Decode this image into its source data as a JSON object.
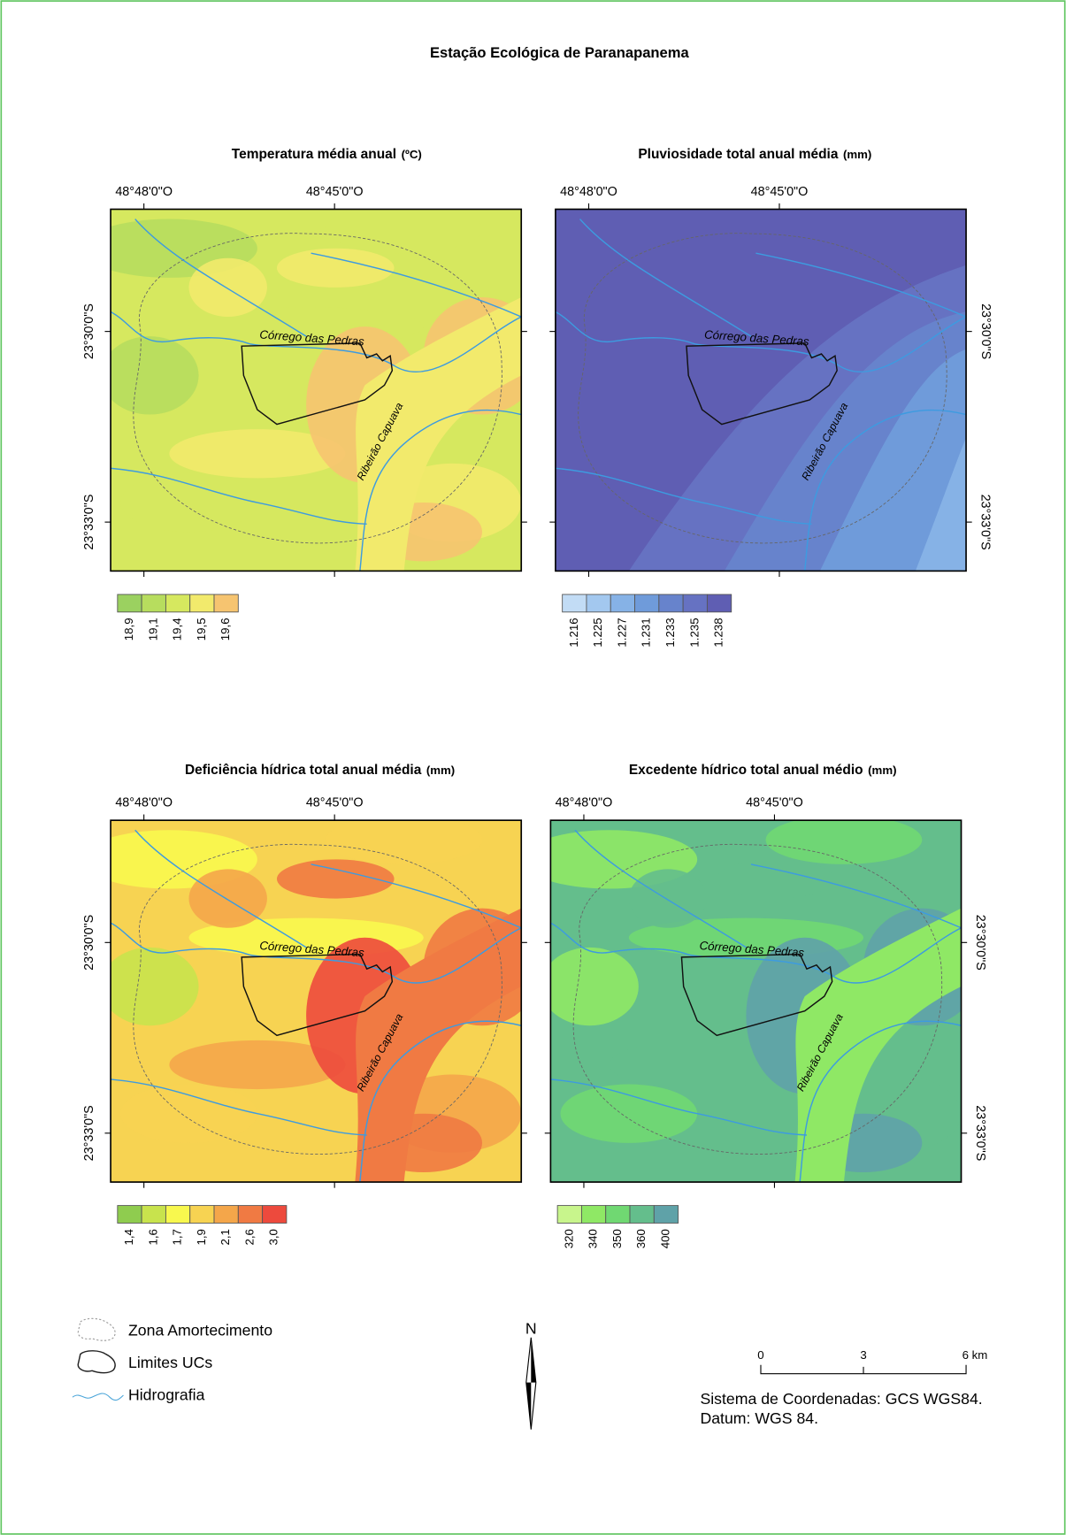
{
  "title": "Estação Ecológica de Paranapanema",
  "coordinates": {
    "x": [
      "48°48'0\"O",
      "48°45'0\"O"
    ],
    "y": [
      "23°30'0\"S",
      "23°33'0\"S"
    ]
  },
  "rivers": [
    "Córrego das Pedras",
    "Ribeirão Capuava"
  ],
  "panels": [
    {
      "title": "Temperatura média anual",
      "unit": "(ºC)",
      "legend": [
        {
          "label": "18,9",
          "color": "#9bd160"
        },
        {
          "label": "19,1",
          "color": "#b7dd5e"
        },
        {
          "label": "19,4",
          "color": "#d6e85f"
        },
        {
          "label": "19,5",
          "color": "#f2ea6c"
        },
        {
          "label": "19,6",
          "color": "#f6c470"
        }
      ]
    },
    {
      "title": "Pluviosidade total anual média",
      "unit": "(mm)",
      "legend": [
        {
          "label": "1.216",
          "color": "#c2dcf5"
        },
        {
          "label": "1.225",
          "color": "#a3c8ef"
        },
        {
          "label": "1.227",
          "color": "#86b2e6"
        },
        {
          "label": "1.231",
          "color": "#6f9bda"
        },
        {
          "label": "1.233",
          "color": "#6783cc"
        },
        {
          "label": "1.235",
          "color": "#6672c2"
        },
        {
          "label": "1.238",
          "color": "#5f5eb3"
        }
      ]
    },
    {
      "title": "Deficiência hídrica total anual média",
      "unit": "(mm)",
      "legend": [
        {
          "label": "1,4",
          "color": "#8fcc4f"
        },
        {
          "label": "1,6",
          "color": "#c8e34d"
        },
        {
          "label": "1,7",
          "color": "#f8f84e"
        },
        {
          "label": "1,9",
          "color": "#f7d352"
        },
        {
          "label": "2,1",
          "color": "#f4a64a"
        },
        {
          "label": "2,6",
          "color": "#f07a43"
        },
        {
          "label": "3,0",
          "color": "#ed4a3d"
        }
      ]
    },
    {
      "title": "Excedente hídrico total anual médio",
      "unit": "(mm)",
      "legend": [
        {
          "label": "320",
          "color": "#c8f58c"
        },
        {
          "label": "340",
          "color": "#8fe865"
        },
        {
          "label": "350",
          "color": "#70d872"
        },
        {
          "label": "360",
          "color": "#64be8c"
        },
        {
          "label": "400",
          "color": "#5fa2a8"
        }
      ]
    }
  ],
  "legend": [
    "Zona Amortecimento",
    "Limites UCs",
    "Hidrografia"
  ],
  "north": "N",
  "scale": [
    "0",
    "3",
    "6 km"
  ],
  "crs": [
    "Sistema de Coordenadas: GCS WGS84.",
    "Datum: WGS 84."
  ]
}
